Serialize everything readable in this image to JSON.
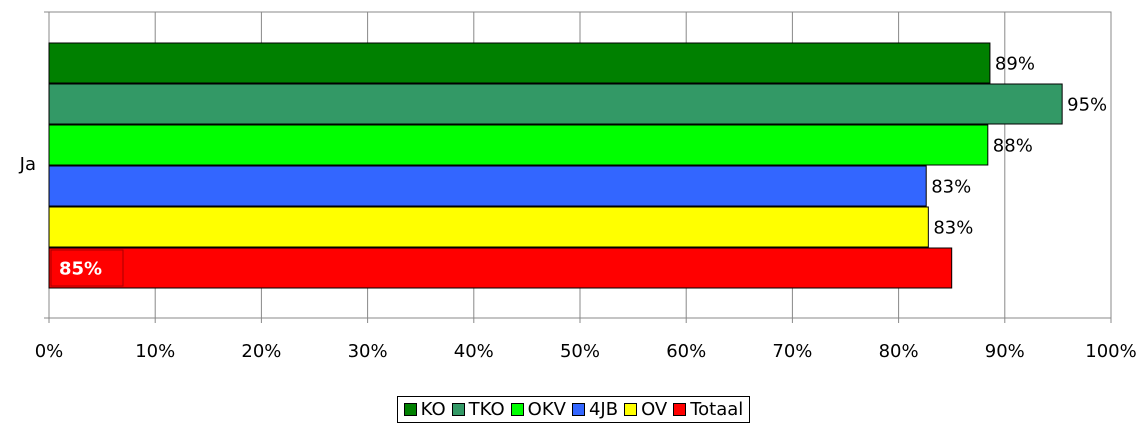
{
  "chart_data": {
    "type": "barh",
    "categories": [
      "Ja"
    ],
    "series": [
      {
        "name": "KO",
        "color": "#008000",
        "values": [
          88.6
        ],
        "value_labels": [
          "89%"
        ]
      },
      {
        "name": "TKO",
        "color": "#339966",
        "values": [
          95.4
        ],
        "value_labels": [
          "95%"
        ]
      },
      {
        "name": "OKV",
        "color": "#00ff00",
        "values": [
          88.4
        ],
        "value_labels": [
          "88%"
        ]
      },
      {
        "name": "4JB",
        "color": "#3366ff",
        "values": [
          82.6
        ],
        "value_labels": [
          "83%"
        ]
      },
      {
        "name": "OV",
        "color": "#ffff00",
        "values": [
          82.8
        ],
        "value_labels": [
          "83%"
        ]
      },
      {
        "name": "Totaal",
        "color": "#ff0000",
        "values": [
          85.0
        ],
        "value_labels": [
          "85%"
        ]
      }
    ],
    "xlim": [
      0,
      100
    ],
    "xticks": [
      {
        "value": 0,
        "label": "0%"
      },
      {
        "value": 10,
        "label": "10%"
      },
      {
        "value": 20,
        "label": "20%"
      },
      {
        "value": 30,
        "label": "30%"
      },
      {
        "value": 40,
        "label": "40%"
      },
      {
        "value": 50,
        "label": "50%"
      },
      {
        "value": 60,
        "label": "60%"
      },
      {
        "value": 70,
        "label": "70%"
      },
      {
        "value": 80,
        "label": "80%"
      },
      {
        "value": 90,
        "label": "90%"
      },
      {
        "value": 100,
        "label": "100%"
      }
    ],
    "grid": true,
    "legend": "bottom"
  }
}
